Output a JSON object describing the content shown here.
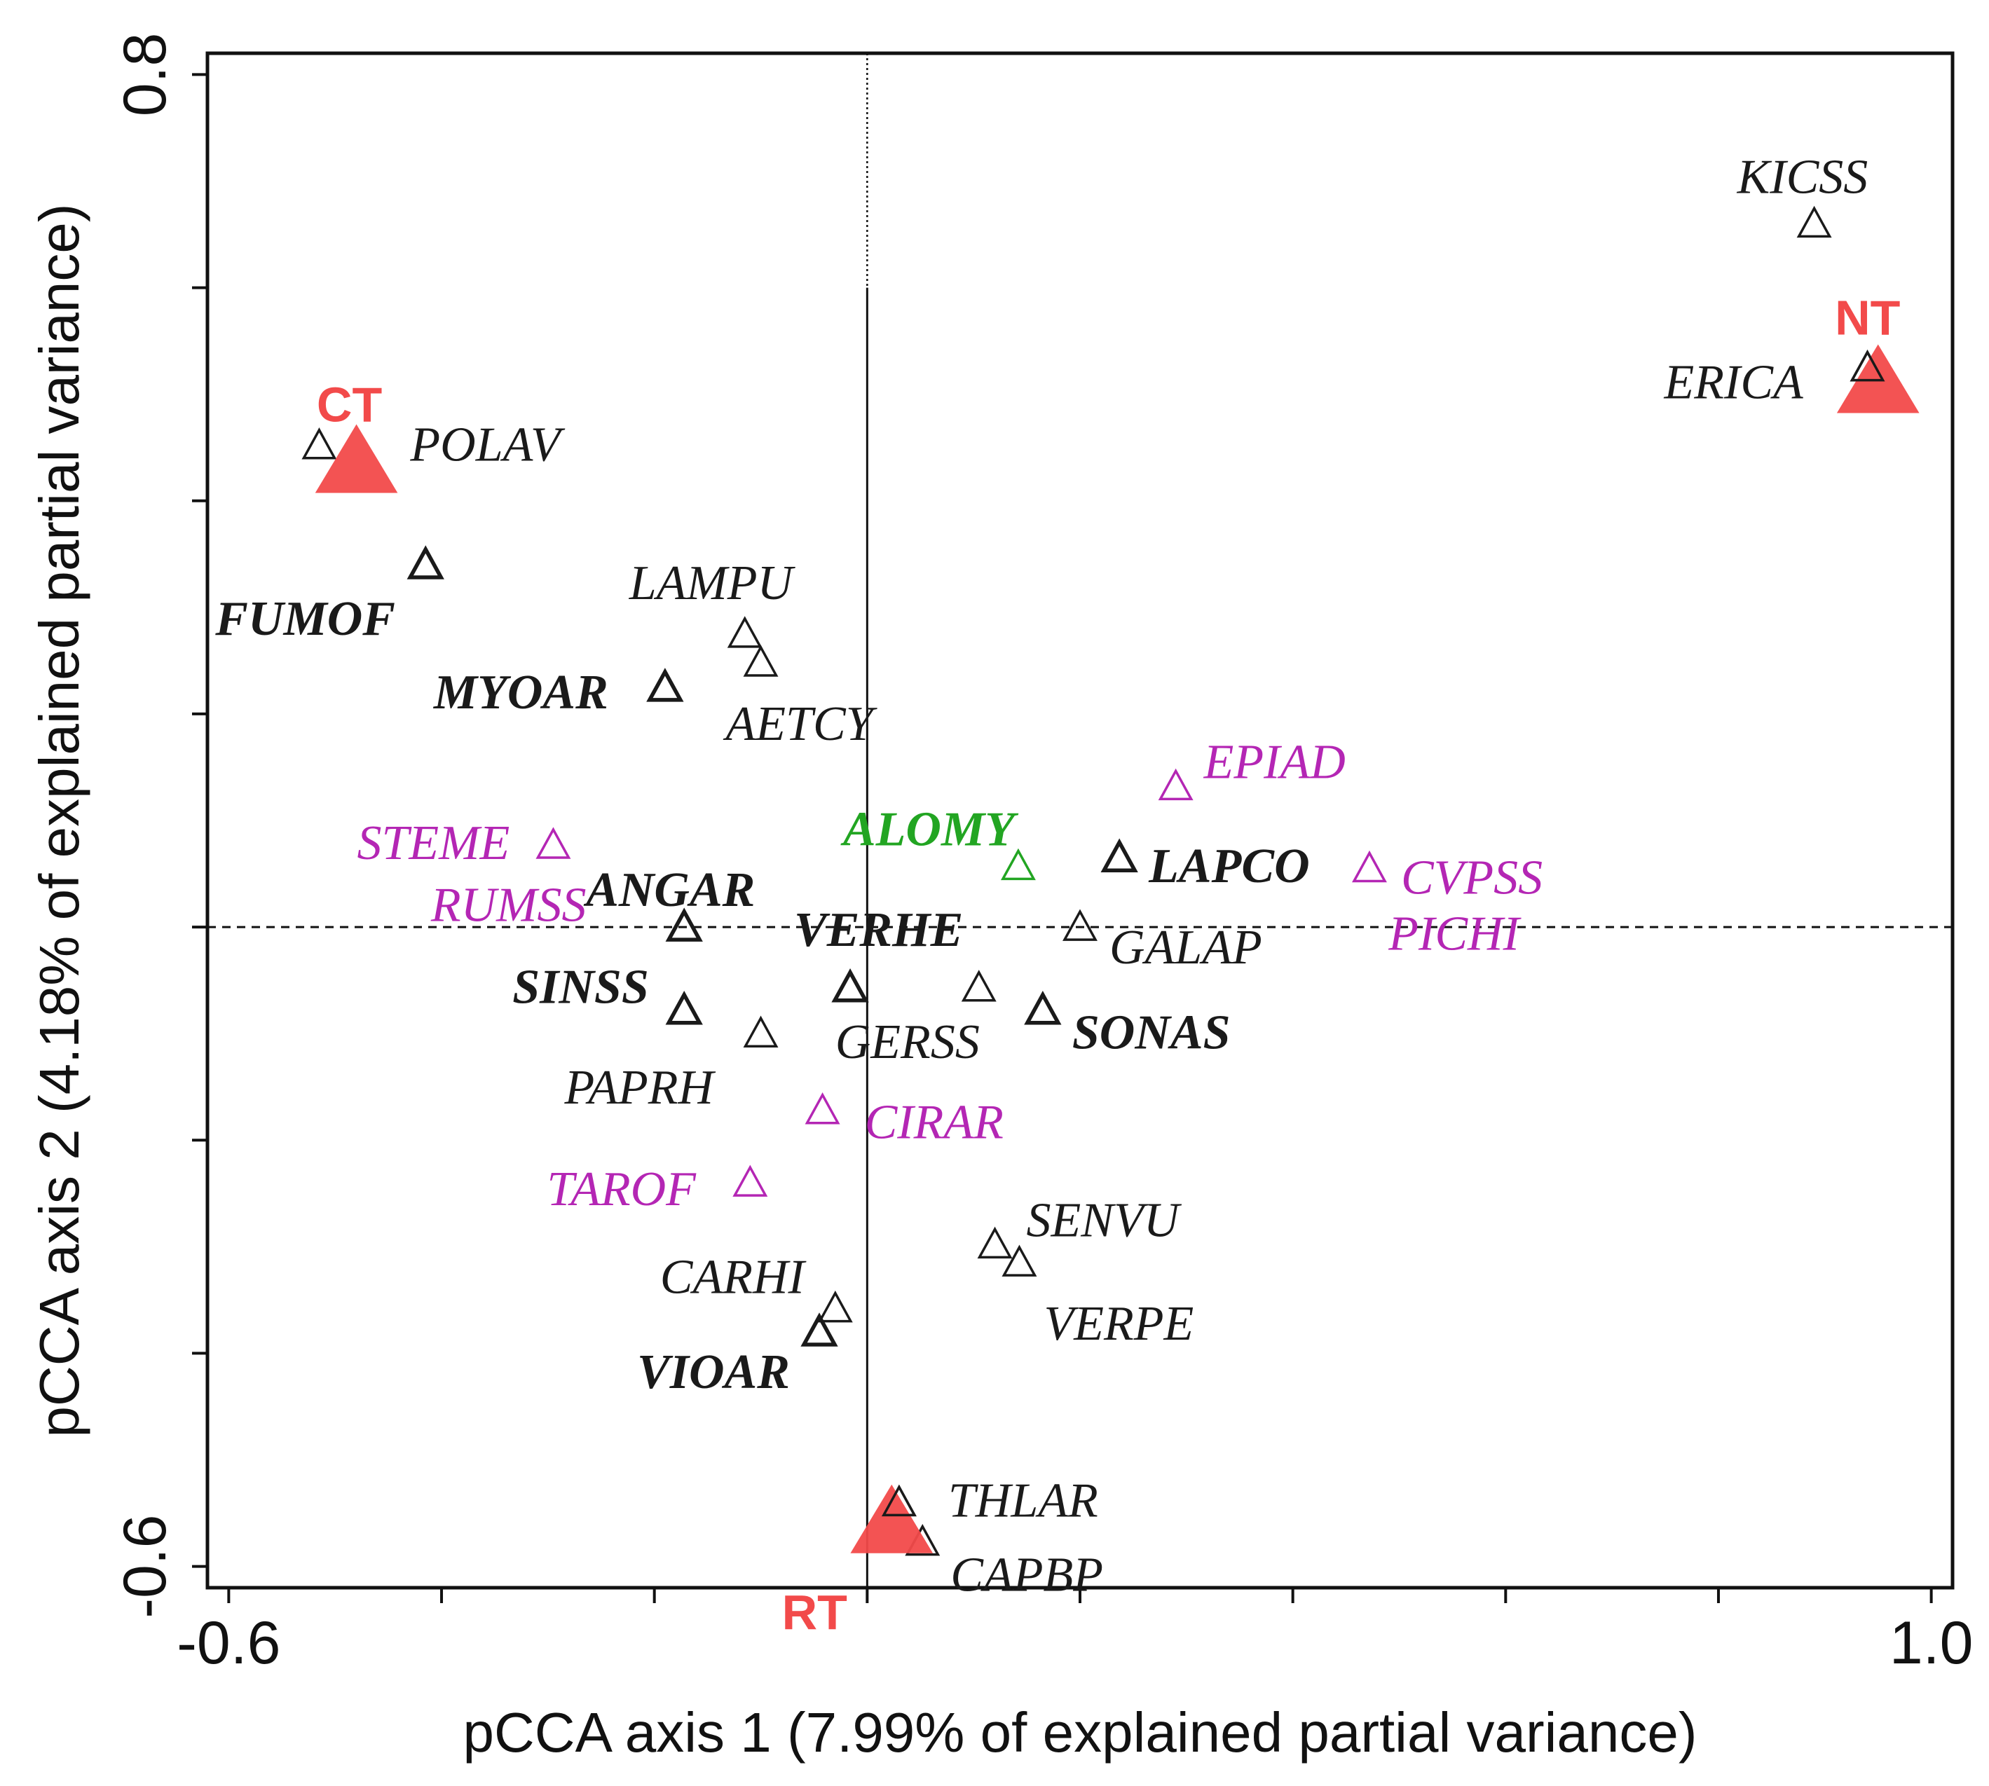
{
  "chart_data": {
    "type": "scatter",
    "xlabel": "pCCA axis 1 (7.99% of explained partial variance)",
    "ylabel": "pCCA axis 2 (4.18% of explained partial variance)",
    "xlim": [
      -0.62,
      1.02
    ],
    "ylim": [
      -0.62,
      0.82
    ],
    "x_tick_labels": [
      {
        "value": -0.6,
        "label": "-0.6"
      },
      {
        "value": 1.0,
        "label": "1.0"
      }
    ],
    "y_tick_labels": [
      {
        "value": 0.8,
        "label": "0.8"
      },
      {
        "value": -0.6,
        "label": "-0.6"
      }
    ],
    "x_minor_ticks": [
      -0.6,
      -0.4,
      -0.2,
      0.0,
      0.2,
      0.4,
      0.6,
      0.8,
      1.0
    ],
    "y_minor_ticks": [
      0.8,
      0.6,
      0.4,
      0.2,
      0.0,
      -0.2,
      -0.4,
      -0.6
    ],
    "colors": {
      "black": "#1a1a1a",
      "magenta": "#b426b4",
      "green": "#22a522",
      "red": "#f24a4a"
    },
    "treatments": [
      {
        "name": "CT",
        "x": -0.48,
        "y": 0.435
      },
      {
        "name": "NT",
        "x": 0.95,
        "y": 0.51
      },
      {
        "name": "RT",
        "x": 0.023,
        "y": -0.56
      }
    ],
    "species": [
      {
        "name": "KICSS",
        "x": 0.89,
        "y": 0.66,
        "color": "black",
        "bold": false
      },
      {
        "name": "ERICA",
        "x": 0.94,
        "y": 0.525,
        "color": "black",
        "bold": false
      },
      {
        "name": "POLAV",
        "x": -0.515,
        "y": 0.452,
        "color": "black",
        "bold": false
      },
      {
        "name": "FUMOF",
        "x": -0.415,
        "y": 0.34,
        "color": "black",
        "bold": true
      },
      {
        "name": "LAMPU",
        "x": -0.115,
        "y": 0.275,
        "color": "black",
        "bold": false
      },
      {
        "name": "AETCY",
        "x": -0.1,
        "y": 0.248,
        "color": "black",
        "bold": false
      },
      {
        "name": "MYOAR",
        "x": -0.19,
        "y": 0.225,
        "color": "black",
        "bold": true
      },
      {
        "name": "EPIAD",
        "x": 0.29,
        "y": 0.132,
        "color": "magenta",
        "bold": false
      },
      {
        "name": "STEME",
        "x": -0.295,
        "y": 0.077,
        "color": "magenta",
        "bold": false
      },
      {
        "name": "ALOMY",
        "x": 0.142,
        "y": 0.057,
        "color": "green",
        "bold": true
      },
      {
        "name": "LAPCO",
        "x": 0.237,
        "y": 0.065,
        "color": "black",
        "bold": true
      },
      {
        "name": "CVPSS",
        "x": 0.472,
        "y": 0.055,
        "color": "magenta",
        "bold": false
      },
      {
        "name": "ANGAR",
        "x": -0.172,
        "y": 0.0,
        "color": "black",
        "bold": true
      },
      {
        "name": "GALAP",
        "x": 0.2,
        "y": 0.0,
        "color": "black",
        "bold": false
      },
      {
        "name": "VERHE",
        "x": -0.016,
        "y": -0.057,
        "color": "black",
        "bold": true
      },
      {
        "name": "GERSS",
        "x": 0.105,
        "y": -0.057,
        "color": "black",
        "bold": false
      },
      {
        "name": "SINSS",
        "x": -0.172,
        "y": -0.078,
        "color": "black",
        "bold": true
      },
      {
        "name": "SONAS",
        "x": 0.165,
        "y": -0.078,
        "color": "black",
        "bold": true
      },
      {
        "name": "PAPRH",
        "x": -0.1,
        "y": -0.1,
        "color": "black",
        "bold": false
      },
      {
        "name": "CIRAR",
        "x": -0.042,
        "y": -0.172,
        "color": "magenta",
        "bold": false
      },
      {
        "name": "TAROF",
        "x": -0.11,
        "y": -0.24,
        "color": "magenta",
        "bold": false
      },
      {
        "name": "SENVU",
        "x": 0.12,
        "y": -0.298,
        "color": "black",
        "bold": false
      },
      {
        "name": "VERPE",
        "x": 0.143,
        "y": -0.315,
        "color": "black",
        "bold": false
      },
      {
        "name": "CARHI",
        "x": -0.03,
        "y": -0.358,
        "color": "black",
        "bold": false
      },
      {
        "name": "VIOAR",
        "x": -0.045,
        "y": -0.38,
        "color": "black",
        "bold": true
      },
      {
        "name": "THLAR",
        "x": 0.03,
        "y": -0.54,
        "color": "black",
        "bold": false
      },
      {
        "name": "CAPBP",
        "x": 0.052,
        "y": -0.577,
        "color": "black",
        "bold": false
      }
    ],
    "extra_labels": [
      {
        "name": "RUMSS",
        "x": -0.41,
        "y": 0.022,
        "color": "magenta",
        "bold": false
      },
      {
        "name": "PICHI",
        "x": 0.49,
        "y": -0.005,
        "color": "magenta",
        "bold": false
      }
    ]
  }
}
